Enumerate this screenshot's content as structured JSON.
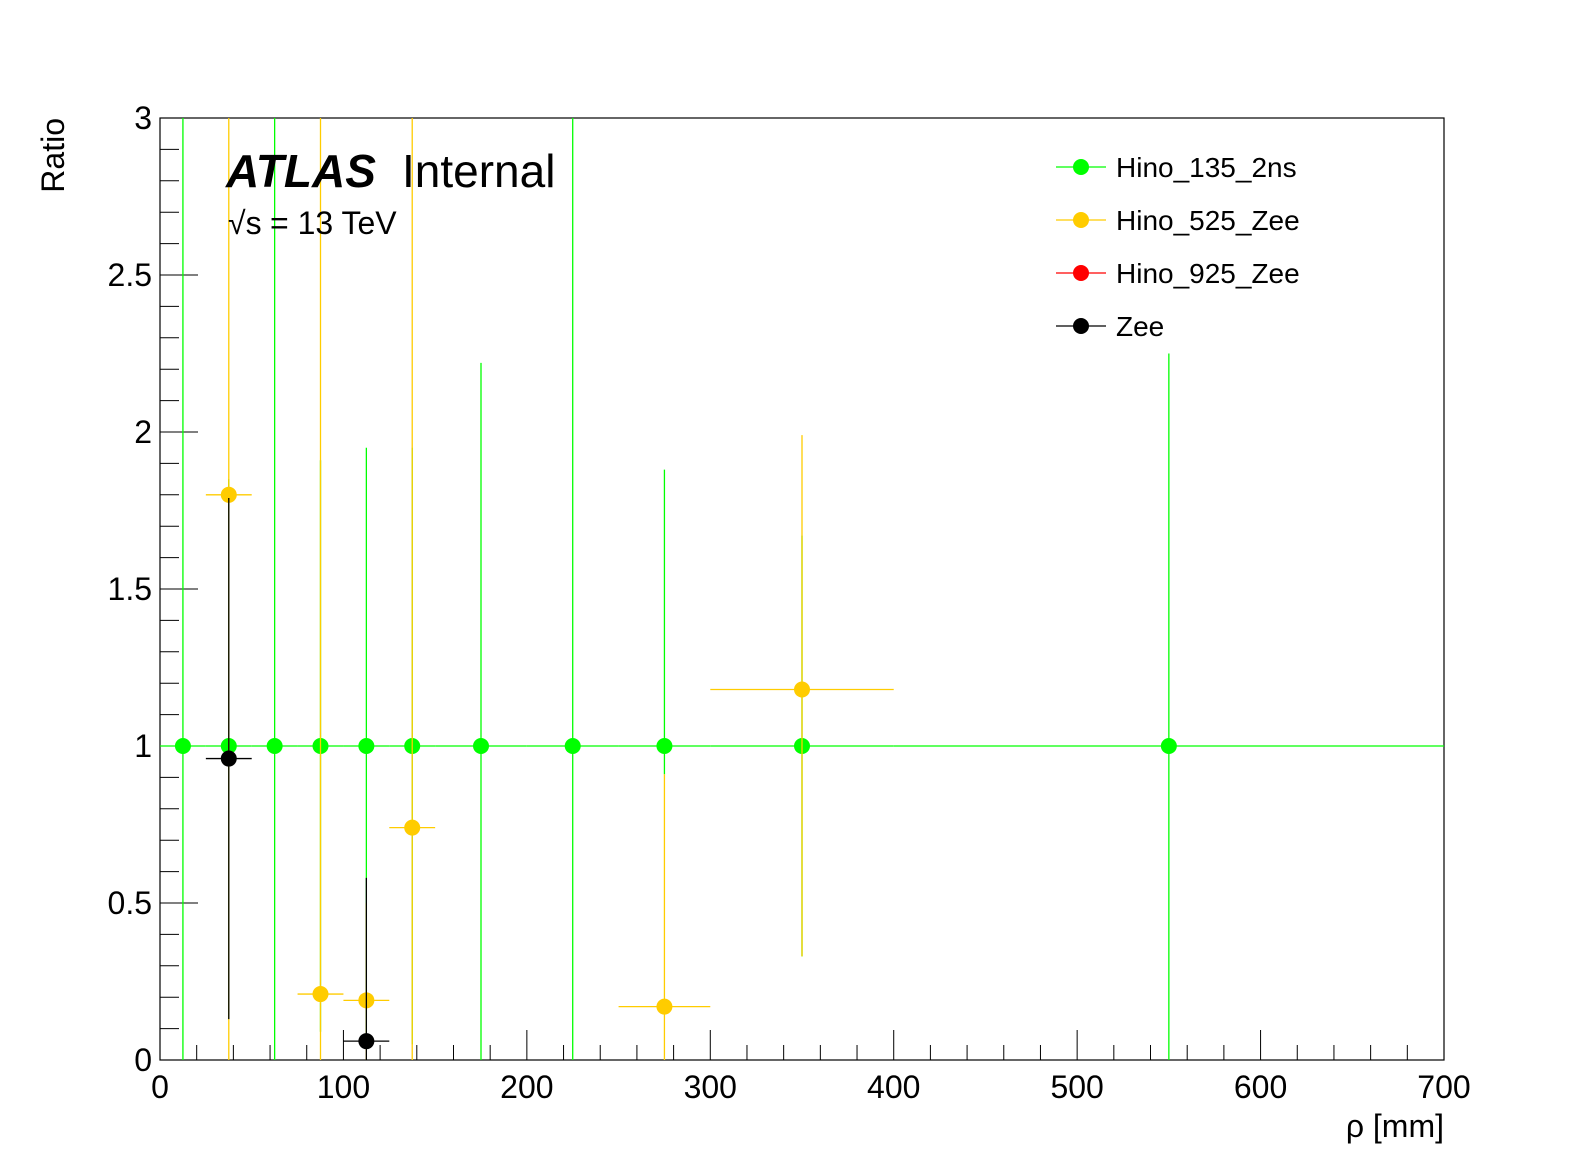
{
  "chart_data": {
    "type": "scatter",
    "xlabel": "ρ [mm]",
    "ylabel": "Ratio",
    "xlim": [
      0,
      700
    ],
    "ylim": [
      0,
      3
    ],
    "x_ticks": [
      "0",
      "100",
      "200",
      "300",
      "400",
      "500",
      "600",
      "700"
    ],
    "y_ticks": [
      "0",
      "0.5",
      "1",
      "1.5",
      "2",
      "2.5",
      "3"
    ],
    "x_tick_values": [
      0,
      100,
      200,
      300,
      400,
      500,
      600,
      700
    ],
    "y_tick_values": [
      0,
      0.5,
      1,
      1.5,
      2,
      2.5,
      3
    ],
    "legend_position": "top-right",
    "grid": false,
    "annotation": {
      "experiment": "ATLAS",
      "status": "Internal",
      "sqrt_symbol": "√s",
      "energy": "= 13 TeV"
    },
    "series": [
      {
        "name": "Hino_135_2ns",
        "color": "#00ff00",
        "points": [
          {
            "x": 12.5,
            "y": 1.0,
            "xlo": 0,
            "xhi": 25,
            "ylo": 0,
            "yhi": 3
          },
          {
            "x": 37.5,
            "y": 1.0,
            "xlo": 25,
            "xhi": 50,
            "ylo": 0.13,
            "yhi": 1.85
          },
          {
            "x": 62.5,
            "y": 1.0,
            "xlo": 50,
            "xhi": 75,
            "ylo": 0,
            "yhi": 3
          },
          {
            "x": 87.5,
            "y": 1.0,
            "xlo": 75,
            "xhi": 100,
            "ylo": 0.09,
            "yhi": 1.91
          },
          {
            "x": 112.5,
            "y": 1.0,
            "xlo": 100,
            "xhi": 125,
            "ylo": 0.05,
            "yhi": 1.95
          },
          {
            "x": 137.5,
            "y": 1.0,
            "xlo": 125,
            "xhi": 150,
            "ylo": 0.05,
            "yhi": 1.95
          },
          {
            "x": 175,
            "y": 1.0,
            "xlo": 150,
            "xhi": 200,
            "ylo": 0,
            "yhi": 2.22
          },
          {
            "x": 225,
            "y": 1.0,
            "xlo": 200,
            "xhi": 250,
            "ylo": 0,
            "yhi": 3
          },
          {
            "x": 275,
            "y": 1.0,
            "xlo": 250,
            "xhi": 300,
            "ylo": 0.91,
            "yhi": 1.88
          },
          {
            "x": 350,
            "y": 1.0,
            "xlo": 300,
            "xhi": 400,
            "ylo": 0.33,
            "yhi": 1.67
          },
          {
            "x": 550,
            "y": 1.0,
            "xlo": 400,
            "xhi": 700,
            "ylo": 0,
            "yhi": 2.25
          }
        ]
      },
      {
        "name": "Hino_525_Zee",
        "color": "#ffcc00",
        "points": [
          {
            "x": 37.5,
            "y": 1.8,
            "xlo": 25,
            "xhi": 50,
            "ylo": 0,
            "yhi": 3
          },
          {
            "x": 87.5,
            "y": 0.21,
            "xlo": 75,
            "xhi": 100,
            "ylo": 0,
            "yhi": 3
          },
          {
            "x": 112.5,
            "y": 0.19,
            "xlo": 100,
            "xhi": 125,
            "ylo": 0,
            "yhi": 0.5
          },
          {
            "x": 137.5,
            "y": 0.74,
            "xlo": 125,
            "xhi": 150,
            "ylo": 0,
            "yhi": 3
          },
          {
            "x": 275,
            "y": 0.17,
            "xlo": 250,
            "xhi": 300,
            "ylo": 0,
            "yhi": 0.91
          },
          {
            "x": 350,
            "y": 1.18,
            "xlo": 300,
            "xhi": 400,
            "ylo": 0.33,
            "yhi": 1.99
          }
        ]
      },
      {
        "name": "Hino_925_Zee",
        "color": "#ff0000",
        "points": []
      },
      {
        "name": "Zee",
        "color": "#000000",
        "points": [
          {
            "x": 37.5,
            "y": 0.96,
            "xlo": 25,
            "xhi": 50,
            "ylo": 0.13,
            "yhi": 1.79
          },
          {
            "x": 112.5,
            "y": 0.06,
            "xlo": 100,
            "xhi": 125,
            "ylo": 0,
            "yhi": 0.58
          }
        ]
      }
    ]
  }
}
